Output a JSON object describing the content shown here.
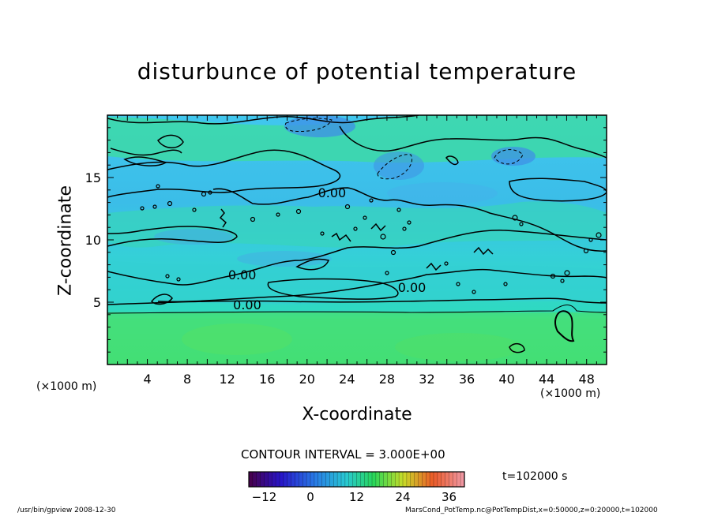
{
  "header": {
    "title": "disturbunce of potential temperature"
  },
  "axes": {
    "xlabel": "X-coordinate",
    "ylabel": "Z-coordinate",
    "x_unit_left": "(×1000 m)",
    "x_unit_right": "(×1000 m)"
  },
  "info": {
    "contour_interval": "CONTOUR INTERVAL = 3.000E+00",
    "time": "t=102000 s"
  },
  "footer": {
    "left": "/usr/bin/gpview   2008-12-30",
    "right": "MarsCond_PotTemp.nc@PotTempDist,x=0:50000,z=0:20000,t=102000"
  },
  "colors": {
    "field_mid": "#2bd6c9",
    "field_low": "#38a8ec",
    "field_high": "#34e47e",
    "contour": "#000000"
  },
  "chart_data": {
    "type": "heatmap",
    "title": "disturbunce of potential temperature",
    "xlabel": "X-coordinate",
    "ylabel": "Z-coordinate",
    "x_units": "(×1000 m)",
    "xlim": [
      0,
      50
    ],
    "ylim": [
      0,
      20
    ],
    "x_ticks": [
      4,
      8,
      12,
      16,
      20,
      24,
      28,
      32,
      36,
      40,
      44,
      48
    ],
    "y_ticks": [
      5,
      10,
      15
    ],
    "contour_interval": 3.0,
    "contour_labels": [
      {
        "text": "0.00",
        "x": 13.5,
        "z": 7.2
      },
      {
        "text": "0.00",
        "x": 14.0,
        "z": 4.8
      },
      {
        "text": "0.00",
        "x": 22.5,
        "z": 13.8
      },
      {
        "text": "0.00",
        "x": 30.5,
        "z": 6.2
      }
    ],
    "colorbar": {
      "ticks": [
        -12,
        0,
        12,
        24,
        36
      ],
      "range": [
        -16,
        40
      ],
      "colormap": "rainbow"
    },
    "time": "t=102000 s"
  }
}
